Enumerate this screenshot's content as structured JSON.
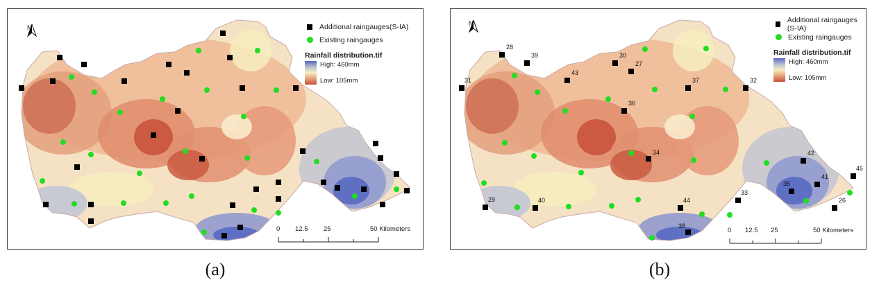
{
  "legend": {
    "additional_a": "Additional raingauges(S-IA)",
    "additional_b": "Additional raingauges (S-IA)",
    "existing": "Existing raingauges",
    "raster_title": "Rainfall distribution.tif",
    "high": "High: 460mm",
    "low": "Low: 105mm"
  },
  "scale": {
    "t0": "0",
    "t1": "12.5",
    "t2": "25",
    "t3": "50 Kilometers"
  },
  "north_label": "N",
  "captions": {
    "a": "(a)",
    "b": "(b)"
  },
  "colors": {
    "high": "#5566c2",
    "low": "#c8503a",
    "mid": "#f7edc0",
    "additional": "#000000",
    "existing": "#22dd22"
  },
  "gauge_labels_b": [
    "28",
    "39",
    "31",
    "43",
    "30",
    "27",
    "37",
    "32",
    "36",
    "34",
    "42",
    "45",
    "41",
    "35",
    "29",
    "40",
    "33",
    "44",
    "26",
    "38"
  ]
}
